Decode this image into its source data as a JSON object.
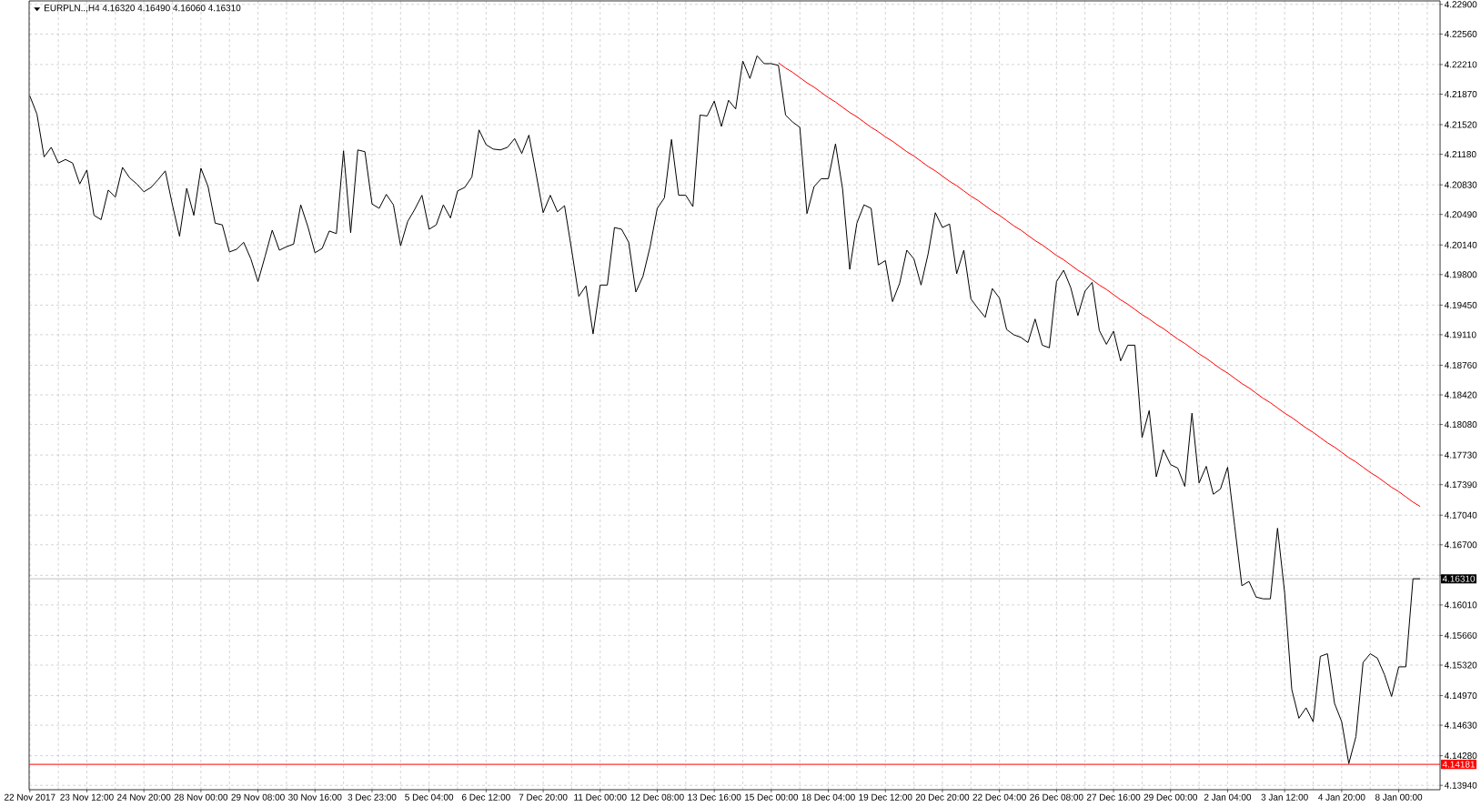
{
  "chart_data": {
    "type": "line",
    "title": "EURPLN..,H4 4.16320 4.16490 4.16060 4.16310",
    "categories": [
      "22 Nov 2017",
      null,
      null,
      null,
      null,
      null,
      null,
      null,
      "23 Nov 12:00",
      null,
      null,
      null,
      null,
      null,
      null,
      null,
      "24 Nov 20:00",
      null,
      null,
      null,
      null,
      null,
      null,
      null,
      "28 Nov 00:00",
      null,
      null,
      null,
      null,
      null,
      null,
      null,
      "29 Nov 08:00",
      null,
      null,
      null,
      null,
      null,
      null,
      null,
      "30 Nov 16:00",
      null,
      null,
      null,
      null,
      null,
      null,
      null,
      "3 Dec 23:00",
      null,
      null,
      null,
      null,
      null,
      null,
      null,
      "5 Dec 04:00",
      null,
      null,
      null,
      null,
      null,
      null,
      null,
      "6 Dec 12:00",
      null,
      null,
      null,
      null,
      null,
      null,
      null,
      "7 Dec 20:00",
      null,
      null,
      null,
      null,
      null,
      null,
      null,
      "11 Dec 00:00",
      null,
      null,
      null,
      null,
      null,
      null,
      null,
      "12 Dec 08:00",
      null,
      null,
      null,
      null,
      null,
      null,
      null,
      "13 Dec 16:00",
      null,
      null,
      null,
      null,
      null,
      null,
      null,
      "15 Dec 00:00",
      null,
      null,
      null,
      null,
      null,
      null,
      null,
      "18 Dec 04:00",
      null,
      null,
      null,
      null,
      null,
      null,
      null,
      "19 Dec 12:00",
      null,
      null,
      null,
      null,
      null,
      null,
      null,
      "20 Dec 20:00",
      null,
      null,
      null,
      null,
      null,
      null,
      null,
      "22 Dec 04:00",
      null,
      null,
      null,
      null,
      null,
      null,
      null,
      "26 Dec 08:00",
      null,
      null,
      null,
      null,
      null,
      null,
      null,
      "27 Dec 16:00",
      null,
      null,
      null,
      null,
      null,
      null,
      null,
      "29 Dec 00:00",
      null,
      null,
      null,
      null,
      null,
      null,
      null,
      "2 Jan 04:00",
      null,
      null,
      null,
      null,
      null,
      null,
      null,
      "3 Jan 12:00",
      null,
      null,
      null,
      null,
      null,
      null,
      null,
      "4 Jan 20:00",
      null,
      null,
      null,
      null,
      null,
      null,
      null,
      "8 Jan 00:00",
      null,
      null,
      null
    ],
    "series": [
      {
        "color": "#000000",
        "values": [
          4.2185,
          4.2164,
          4.2115,
          4.2126,
          4.2108,
          4.2112,
          4.2108,
          4.2084,
          4.21,
          4.2048,
          4.2043,
          4.2077,
          4.2069,
          4.2103,
          4.2091,
          4.2084,
          4.2075,
          4.208,
          4.2089,
          4.2099,
          4.206,
          4.2024,
          4.2079,
          4.2048,
          4.2102,
          4.2081,
          4.2039,
          4.2037,
          4.2006,
          4.2009,
          4.2017,
          4.1998,
          4.1972,
          4.2001,
          4.2031,
          4.2008,
          4.2012,
          4.2015,
          4.206,
          4.2035,
          4.2005,
          4.201,
          4.203,
          4.2027,
          4.2122,
          4.2028,
          4.2123,
          4.2121,
          4.2061,
          4.2056,
          4.2072,
          4.206,
          4.2013,
          4.2041,
          4.2055,
          4.2071,
          4.2032,
          4.2037,
          4.206,
          4.2045,
          4.2076,
          4.208,
          4.2092,
          4.2146,
          4.2129,
          4.2124,
          4.2123,
          4.2126,
          4.2136,
          4.2119,
          4.214,
          4.2096,
          4.2051,
          4.2071,
          4.2052,
          4.2059,
          4.2008,
          4.1955,
          4.1967,
          4.1912,
          4.1968,
          4.1968,
          4.2034,
          4.2032,
          4.2017,
          4.196,
          4.1978,
          4.2012,
          4.2056,
          4.2068,
          4.2135,
          4.2071,
          4.2071,
          4.2058,
          4.2163,
          4.2162,
          4.2179,
          4.215,
          4.218,
          4.217,
          4.2225,
          4.2205,
          4.2231,
          4.2222,
          4.2222,
          4.222,
          4.2163,
          4.2155,
          4.2149,
          4.205,
          4.2081,
          4.209,
          4.209,
          4.213,
          4.2078,
          4.1986,
          4.2039,
          4.206,
          4.2056,
          4.1991,
          4.1996,
          4.1949,
          4.197,
          4.2008,
          4.1998,
          4.1968,
          4.2004,
          4.2051,
          4.2034,
          4.2038,
          4.1981,
          4.2008,
          4.1952,
          4.1941,
          4.1931,
          4.1964,
          4.1953,
          4.1917,
          4.1911,
          4.1908,
          4.1902,
          4.1929,
          4.1899,
          4.1896,
          4.1972,
          4.1985,
          4.1965,
          4.1933,
          4.1961,
          4.1971,
          4.1916,
          4.19,
          4.1915,
          4.1881,
          4.1899,
          4.1899,
          4.1793,
          4.1824,
          4.1748,
          4.1779,
          4.1762,
          4.1758,
          4.1737,
          4.1821,
          4.1741,
          4.176,
          4.1728,
          4.1734,
          4.1759,
          4.1691,
          4.1623,
          4.1628,
          4.161,
          4.1608,
          4.1608,
          4.1689,
          4.1615,
          4.1504,
          4.1471,
          4.1483,
          4.1467,
          4.1542,
          4.1545,
          4.1488,
          4.1467,
          4.1419,
          4.145,
          4.1535,
          4.1545,
          4.154,
          4.1521,
          4.1496,
          4.153,
          4.153,
          4.1631,
          4.1631
        ]
      },
      {
        "color": "#ff0000",
        "values": [
          null,
          null,
          null,
          null,
          null,
          null,
          null,
          null,
          null,
          null,
          null,
          null,
          null,
          null,
          null,
          null,
          null,
          null,
          null,
          null,
          null,
          null,
          null,
          null,
          null,
          null,
          null,
          null,
          null,
          null,
          null,
          null,
          null,
          null,
          null,
          null,
          null,
          null,
          null,
          null,
          null,
          null,
          null,
          null,
          null,
          null,
          null,
          null,
          null,
          null,
          null,
          null,
          null,
          null,
          null,
          null,
          null,
          null,
          null,
          null,
          null,
          null,
          null,
          null,
          null,
          null,
          null,
          null,
          null,
          null,
          null,
          null,
          null,
          null,
          null,
          null,
          null,
          null,
          null,
          null,
          null,
          null,
          null,
          null,
          null,
          null,
          null,
          null,
          null,
          null,
          null,
          null,
          null,
          null,
          null,
          null,
          null,
          null,
          null,
          null,
          null,
          null,
          null,
          null,
          null,
          4.2223,
          4.2217,
          4.2212,
          4.2206,
          4.22,
          4.2195,
          4.2189,
          4.2183,
          4.2178,
          4.2172,
          4.2166,
          4.2161,
          4.2155,
          4.2149,
          4.2144,
          4.2138,
          4.2133,
          4.2127,
          4.2121,
          4.2116,
          4.211,
          4.2104,
          4.2099,
          4.2093,
          4.2087,
          4.2082,
          4.2076,
          4.207,
          4.2065,
          4.2059,
          4.2053,
          4.2048,
          4.2042,
          4.2036,
          4.2031,
          4.2025,
          4.2019,
          4.2014,
          4.2008,
          4.2002,
          4.1997,
          4.1991,
          4.1985,
          4.198,
          4.1974,
          4.1968,
          4.1963,
          4.1957,
          4.1951,
          4.1946,
          4.194,
          4.1934,
          4.1929,
          4.1923,
          4.1918,
          4.1912,
          4.1906,
          4.1901,
          4.1895,
          4.1889,
          4.1884,
          4.1878,
          4.1872,
          4.1867,
          4.1861,
          4.1855,
          4.185,
          4.1844,
          4.1838,
          4.1833,
          4.1827,
          4.1821,
          4.1816,
          4.181,
          4.1804,
          4.1799,
          4.1793,
          4.1787,
          4.1782,
          4.1776,
          4.177,
          4.1765,
          4.1759,
          4.1753,
          4.1748,
          4.1742,
          4.1736,
          4.1731,
          4.1725,
          4.1719,
          4.1714
        ]
      }
    ],
    "ylim": [
      4.1389,
      4.2294
    ],
    "yticks": [
      {
        "value": 4.1394,
        "label": "4.13940"
      },
      {
        "value": 4.1428,
        "label": "4.14280"
      },
      {
        "value": 4.1463,
        "label": "4.14630"
      },
      {
        "value": 4.1497,
        "label": "4.14970"
      },
      {
        "value": 4.1532,
        "label": "4.15320"
      },
      {
        "value": 4.1566,
        "label": "4.15660"
      },
      {
        "value": 4.1601,
        "label": "4.16010"
      },
      {
        "value": 4.1635,
        "label": null
      },
      {
        "value": 4.167,
        "label": "4.16700"
      },
      {
        "value": 4.1704,
        "label": "4.17040"
      },
      {
        "value": 4.1739,
        "label": "4.17390"
      },
      {
        "value": 4.1773,
        "label": "4.17730"
      },
      {
        "value": 4.1808,
        "label": "4.18080"
      },
      {
        "value": 4.1842,
        "label": "4.18420"
      },
      {
        "value": 4.1876,
        "label": "4.18760"
      },
      {
        "value": 4.1911,
        "label": "4.19110"
      },
      {
        "value": 4.1945,
        "label": "4.19450"
      },
      {
        "value": 4.198,
        "label": "4.19800"
      },
      {
        "value": 4.2014,
        "label": "4.20140"
      },
      {
        "value": 4.2049,
        "label": "4.20490"
      },
      {
        "value": 4.2083,
        "label": "4.20830"
      },
      {
        "value": 4.2118,
        "label": "4.21180"
      },
      {
        "value": 4.2152,
        "label": "4.21520"
      },
      {
        "value": 4.2187,
        "label": "4.21870"
      },
      {
        "value": 4.2221,
        "label": "4.22210"
      },
      {
        "value": 4.2256,
        "label": "4.22560"
      },
      {
        "value": 4.229,
        "label": "4.22900"
      }
    ],
    "ref_lines": [
      {
        "axis": "y",
        "value": 4.1631,
        "label": "4.16310",
        "color": "#c0c0c0"
      },
      {
        "axis": "y",
        "value": 4.14181,
        "label": "4.14181",
        "color": "#ff0000"
      }
    ],
    "grid": true
  }
}
